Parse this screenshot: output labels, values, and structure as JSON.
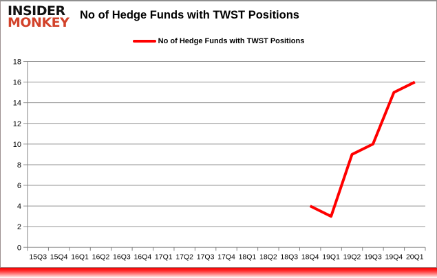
{
  "header": {
    "logo_line1": "INSIDER",
    "logo_line2": "MONKEY",
    "title": "No of Hedge Funds with TWST Positions"
  },
  "legend": {
    "label": "No of Hedge Funds with TWST Positions"
  },
  "chart_data": {
    "type": "line",
    "title": "No of Hedge Funds with TWST Positions",
    "categories": [
      "15Q3",
      "15Q4",
      "16Q1",
      "16Q2",
      "16Q3",
      "16Q4",
      "17Q1",
      "17Q2",
      "17Q3",
      "17Q4",
      "18Q1",
      "18Q2",
      "18Q3",
      "18Q4",
      "19Q1",
      "19Q2",
      "19Q3",
      "19Q4",
      "20Q1"
    ],
    "series": [
      {
        "name": "No of Hedge Funds with TWST Positions",
        "color": "#ff0000",
        "values": [
          null,
          null,
          null,
          null,
          null,
          null,
          null,
          null,
          null,
          null,
          null,
          null,
          null,
          4,
          3,
          9,
          10,
          15,
          16
        ]
      }
    ],
    "xlabel": "",
    "ylabel": "",
    "ylim": [
      0,
      18
    ],
    "ytick_step": 2,
    "grid": true,
    "legend_position": "top",
    "colors": {
      "grid": "#919191",
      "axis": "#808080",
      "text": "#000000",
      "line": "#ff0000",
      "logo_red": "#d2422a",
      "bottom_bar": "#f20000"
    }
  }
}
